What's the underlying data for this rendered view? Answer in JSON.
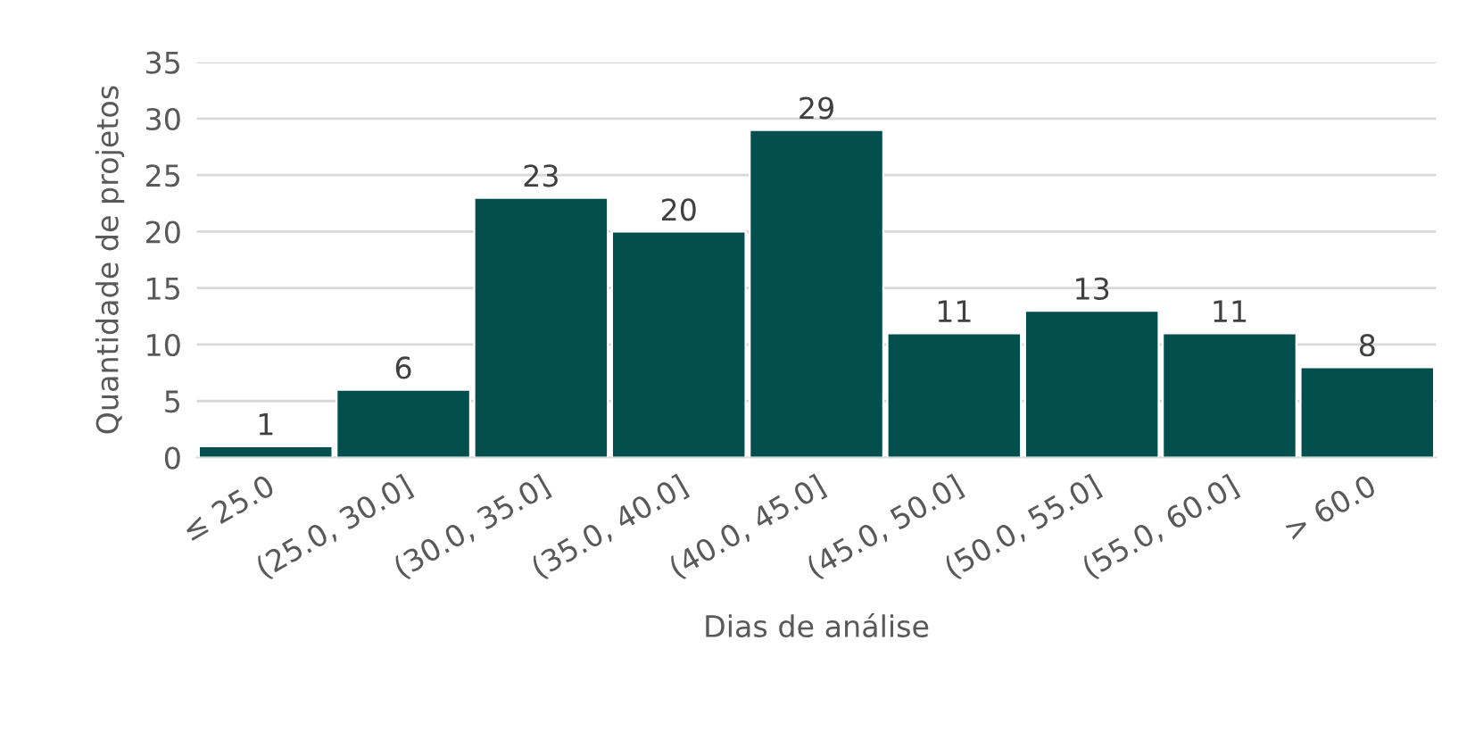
{
  "chart_data": {
    "type": "bar",
    "xlabel": "Dias de análise",
    "ylabel": "Quantidade de projetos",
    "categories": [
      "≤ 25.0",
      "(25.0, 30.0]",
      "(30.0, 35.0]",
      "(35.0, 40.0]",
      "(40.0, 45.0]",
      "(45.0, 50.0]",
      "(50.0, 55.0]",
      "(55.0, 60.0]",
      "> 60.0"
    ],
    "values": [
      1,
      6,
      23,
      20,
      29,
      11,
      13,
      11,
      8
    ],
    "color": "#024f4e",
    "ylim": [
      0,
      35
    ],
    "yticks": [
      0,
      5,
      10,
      15,
      20,
      25,
      30,
      35
    ],
    "grid": "y",
    "data_labels": true,
    "legend": false
  }
}
